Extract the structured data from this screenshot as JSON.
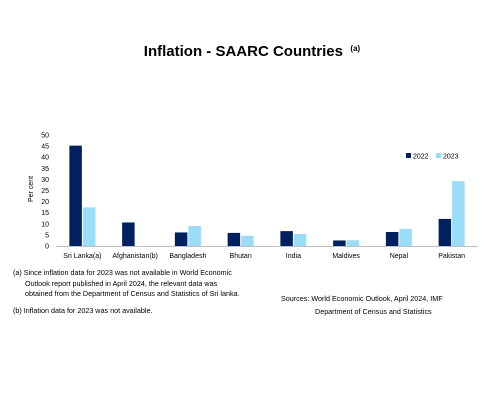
{
  "chart_data": {
    "type": "bar",
    "title": "Inflation - SAARC Countries",
    "title_superscript": "(a)",
    "ylabel": "Per cent",
    "ylim": [
      0,
      50
    ],
    "yticks": [
      0,
      5,
      10,
      15,
      20,
      25,
      30,
      35,
      40,
      45,
      50
    ],
    "categories": [
      "Sri Lanka(a)",
      "Afghanistan(b)",
      "Bangladesh",
      "Bhutan",
      "India",
      "Maldives",
      "Nepal",
      "Pakistan"
    ],
    "series": [
      {
        "name": "2022",
        "color": "#002060",
        "values": [
          45.2,
          10.6,
          6.1,
          5.9,
          6.7,
          2.5,
          6.3,
          12.2
        ]
      },
      {
        "name": "2023",
        "color": "#99DDF8",
        "values": [
          17.4,
          null,
          9.0,
          4.6,
          5.4,
          2.6,
          7.7,
          29.2
        ]
      }
    ],
    "legend_position": "top-right",
    "grid": false
  },
  "footnotes": {
    "a_line1": "(a) Since inflation data for 2023 was not available in World Economic",
    "a_line2": "Outlook report published in April 2024, the relevant data was",
    "a_line3": "obtained from the Department of Census and Statistics of Sri lanka.",
    "b": "(b) Inflation data for 2023 was not available."
  },
  "sources": {
    "line1": "Sources: World Economic Outlook, April 2024, IMF",
    "line2": "Department of Census and Statistics"
  }
}
